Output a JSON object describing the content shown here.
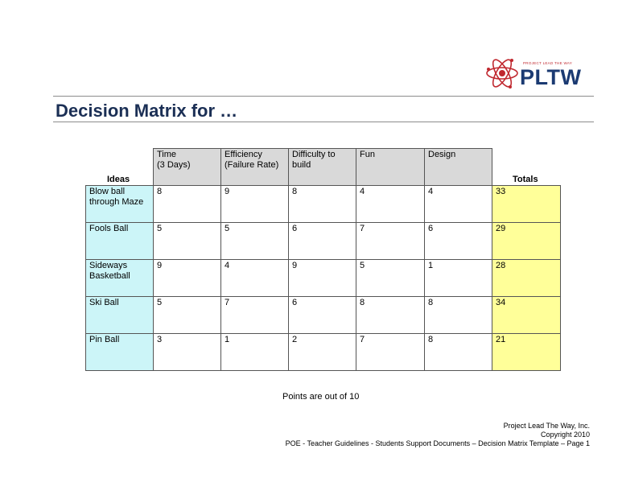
{
  "logo": {
    "tagline": "PROJECT LEAD THE WAY",
    "wordmark": "PLTW"
  },
  "title": "Decision Matrix for …",
  "labels": {
    "ideas": "Ideas",
    "totals": "Totals"
  },
  "matrix": {
    "criteria": [
      "Time\n(3 Days)",
      "Efficiency\n(Failure Rate)",
      "Difficulty to\nbuild",
      "Fun",
      "Design"
    ],
    "rows": [
      {
        "idea": "Blow ball\nthrough Maze",
        "scores": [
          "8",
          "9",
          "8",
          "4",
          "4"
        ],
        "total": "33"
      },
      {
        "idea": "Fools Ball",
        "scores": [
          "5",
          "5",
          "6",
          "7",
          "6"
        ],
        "total": "29"
      },
      {
        "idea": "Sideways\nBasketball",
        "scores": [
          "9",
          "4",
          "9",
          "5",
          "1"
        ],
        "total": "28"
      },
      {
        "idea": "Ski Ball",
        "scores": [
          "5",
          "7",
          "6",
          "8",
          "8"
        ],
        "total": "34"
      },
      {
        "idea": "Pin Ball",
        "scores": [
          "3",
          "1",
          "2",
          "7",
          "8"
        ],
        "total": "21"
      }
    ]
  },
  "note": "Points are out of 10",
  "footer": {
    "org": "Project Lead The Way, Inc.",
    "copyright": "Copyright 2010",
    "doc": "POE - Teacher Guidelines - Students Support Documents – Decision Matrix Template – Page 1"
  },
  "colors": {
    "header_bg": "#d9d9d9",
    "idea_bg": "#ccf5f8",
    "total_bg": "#ffff99",
    "title": "#1b2f55",
    "logo_blue": "#1b3a72",
    "logo_red": "#c0282f"
  }
}
